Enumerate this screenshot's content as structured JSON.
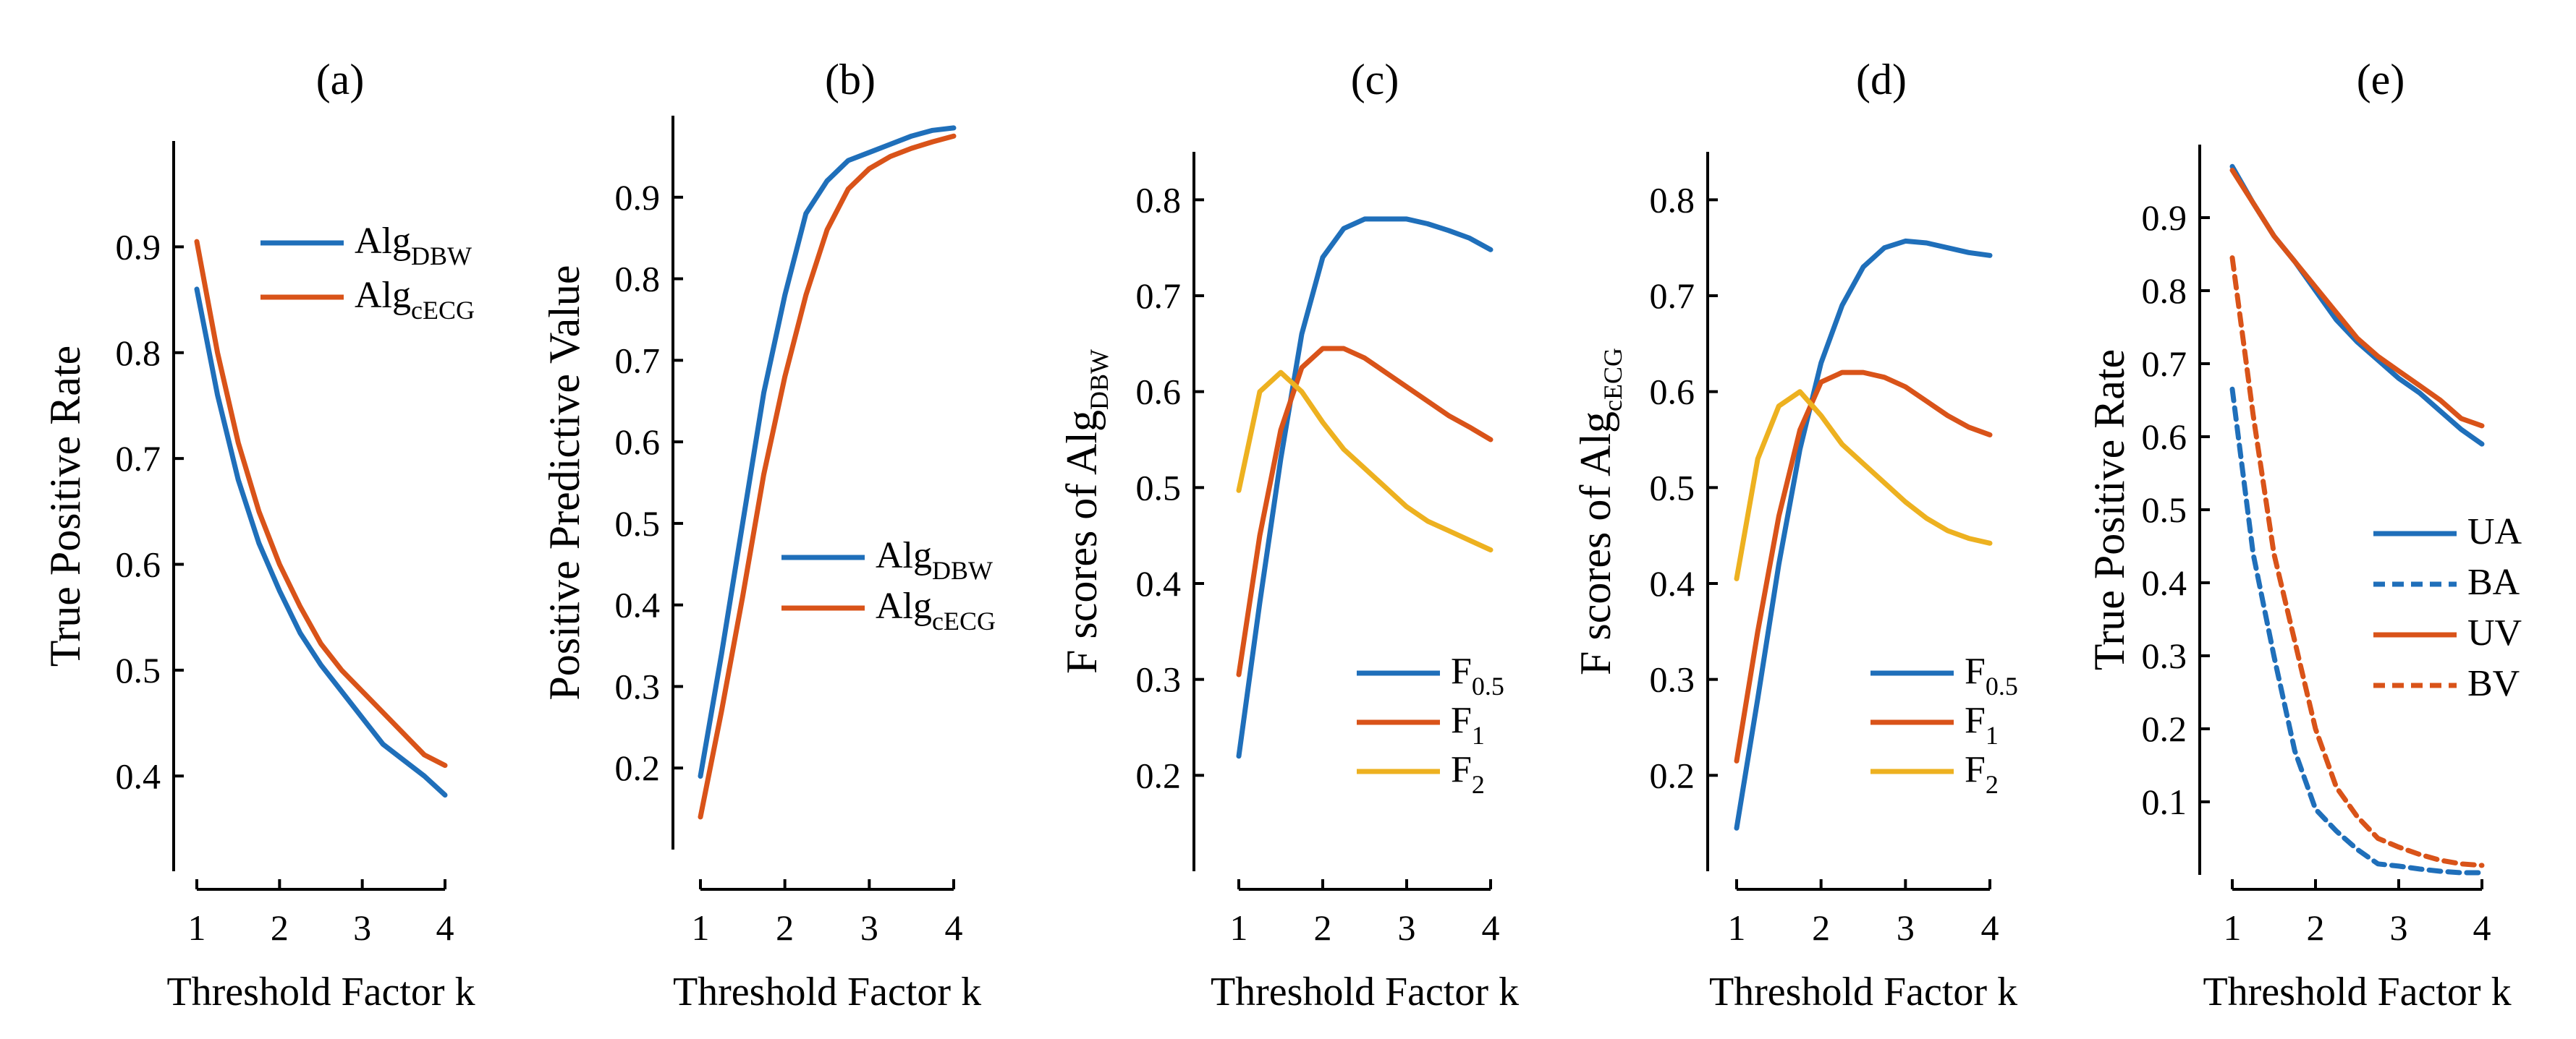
{
  "colors": {
    "blue": "#1f6fba",
    "orange": "#d95319",
    "yellow": "#edb120"
  },
  "chart_data": [
    {
      "type": "line",
      "title": "(a)",
      "xlabel": "Threshold Factor k",
      "ylabel": "True Positive Rate",
      "xlim": [
        1,
        4
      ],
      "ylim": [
        0.31,
        1.0
      ],
      "xticks": [
        1,
        2,
        3,
        4
      ],
      "xtick_labels": [
        "1",
        "2",
        "3",
        "4"
      ],
      "yticks": [
        0.4,
        0.5,
        0.6,
        0.7,
        0.8,
        0.9
      ],
      "ytick_labels": [
        "0.4",
        "0.5",
        "0.6",
        "0.7",
        "0.8",
        "0.9"
      ],
      "legend_position": "top-right",
      "x": [
        1.0,
        1.25,
        1.5,
        1.75,
        2.0,
        2.25,
        2.5,
        2.75,
        3.0,
        3.25,
        3.5,
        3.75,
        4.0
      ],
      "series": [
        {
          "name": "Alg",
          "sub": "DBW",
          "color": "blue",
          "dash": "solid",
          "values": [
            0.86,
            0.76,
            0.68,
            0.62,
            0.575,
            0.535,
            0.505,
            0.48,
            0.455,
            0.43,
            0.415,
            0.4,
            0.382
          ]
        },
        {
          "name": "Alg",
          "sub": "cECG",
          "color": "orange",
          "dash": "solid",
          "values": [
            0.905,
            0.8,
            0.715,
            0.65,
            0.6,
            0.56,
            0.525,
            0.5,
            0.48,
            0.46,
            0.44,
            0.42,
            0.41
          ]
        }
      ]
    },
    {
      "type": "line",
      "title": "(b)",
      "xlabel": "Threshold Factor k",
      "ylabel": "Positive Predictive Value",
      "xlim": [
        1,
        4
      ],
      "ylim": [
        0.1,
        1.0
      ],
      "xticks": [
        1,
        2,
        3,
        4
      ],
      "xtick_labels": [
        "1",
        "2",
        "3",
        "4"
      ],
      "yticks": [
        0.2,
        0.3,
        0.4,
        0.5,
        0.6,
        0.7,
        0.8,
        0.9
      ],
      "ytick_labels": [
        "0.2",
        "0.3",
        "0.4",
        "0.5",
        "0.6",
        "0.7",
        "0.8",
        "0.9"
      ],
      "legend_position": "middle-right",
      "x": [
        1.0,
        1.25,
        1.5,
        1.75,
        2.0,
        2.25,
        2.5,
        2.75,
        3.0,
        3.25,
        3.5,
        3.75,
        4.0
      ],
      "series": [
        {
          "name": "Alg",
          "sub": "DBW",
          "color": "blue",
          "dash": "solid",
          "values": [
            0.19,
            0.34,
            0.5,
            0.66,
            0.78,
            0.88,
            0.92,
            0.945,
            0.955,
            0.965,
            0.975,
            0.982,
            0.985
          ]
        },
        {
          "name": "Alg",
          "sub": "cECG",
          "color": "orange",
          "dash": "solid",
          "values": [
            0.14,
            0.27,
            0.41,
            0.56,
            0.68,
            0.78,
            0.86,
            0.91,
            0.935,
            0.95,
            0.96,
            0.968,
            0.975
          ]
        }
      ]
    },
    {
      "type": "line",
      "title": "(c)",
      "xlabel": "Threshold Factor k",
      "ylabel": "F scores of Alg",
      "ylabel_sub": "DBW",
      "xlim": [
        1,
        4
      ],
      "ylim": [
        0.1,
        0.85
      ],
      "xticks": [
        1,
        2,
        3,
        4
      ],
      "xtick_labels": [
        "1",
        "2",
        "3",
        "4"
      ],
      "yticks": [
        0.2,
        0.3,
        0.4,
        0.5,
        0.6,
        0.7,
        0.8
      ],
      "ytick_labels": [
        "0.2",
        "0.3",
        "0.4",
        "0.5",
        "0.6",
        "0.7",
        "0.8"
      ],
      "legend_position": "bottom-right",
      "x": [
        1.0,
        1.25,
        1.5,
        1.75,
        2.0,
        2.25,
        2.5,
        2.75,
        3.0,
        3.25,
        3.5,
        3.75,
        4.0
      ],
      "series": [
        {
          "name": "F",
          "sub": "0.5",
          "color": "blue",
          "dash": "solid",
          "values": [
            0.22,
            0.38,
            0.53,
            0.66,
            0.74,
            0.77,
            0.78,
            0.78,
            0.78,
            0.775,
            0.768,
            0.76,
            0.748
          ]
        },
        {
          "name": "F",
          "sub": "1",
          "color": "orange",
          "dash": "solid",
          "values": [
            0.305,
            0.45,
            0.56,
            0.625,
            0.645,
            0.645,
            0.635,
            0.62,
            0.605,
            0.59,
            0.575,
            0.563,
            0.55
          ]
        },
        {
          "name": "F",
          "sub": "2",
          "color": "yellow",
          "dash": "solid",
          "values": [
            0.497,
            0.6,
            0.62,
            0.6,
            0.568,
            0.54,
            0.52,
            0.5,
            0.48,
            0.465,
            0.455,
            0.445,
            0.435
          ]
        }
      ]
    },
    {
      "type": "line",
      "title": "(d)",
      "xlabel": "Threshold Factor k",
      "ylabel": "F scores of Alg",
      "ylabel_sub": "cECG",
      "xlim": [
        1,
        4
      ],
      "ylim": [
        0.1,
        0.85
      ],
      "xticks": [
        1,
        2,
        3,
        4
      ],
      "xtick_labels": [
        "1",
        "2",
        "3",
        "4"
      ],
      "yticks": [
        0.2,
        0.3,
        0.4,
        0.5,
        0.6,
        0.7,
        0.8
      ],
      "ytick_labels": [
        "0.2",
        "0.3",
        "0.4",
        "0.5",
        "0.6",
        "0.7",
        "0.8"
      ],
      "legend_position": "bottom-right",
      "x": [
        1.0,
        1.25,
        1.5,
        1.75,
        2.0,
        2.25,
        2.5,
        2.75,
        3.0,
        3.25,
        3.5,
        3.75,
        4.0
      ],
      "series": [
        {
          "name": "F",
          "sub": "0.5",
          "color": "blue",
          "dash": "solid",
          "values": [
            0.145,
            0.28,
            0.42,
            0.54,
            0.63,
            0.69,
            0.73,
            0.75,
            0.757,
            0.755,
            0.75,
            0.745,
            0.742
          ]
        },
        {
          "name": "F",
          "sub": "1",
          "color": "orange",
          "dash": "solid",
          "values": [
            0.215,
            0.35,
            0.47,
            0.56,
            0.61,
            0.62,
            0.62,
            0.615,
            0.605,
            0.59,
            0.575,
            0.563,
            0.555
          ]
        },
        {
          "name": "F",
          "sub": "2",
          "color": "yellow",
          "dash": "solid",
          "values": [
            0.405,
            0.53,
            0.585,
            0.6,
            0.575,
            0.545,
            0.525,
            0.505,
            0.485,
            0.468,
            0.455,
            0.447,
            0.442
          ]
        }
      ]
    },
    {
      "type": "line",
      "title": "(e)",
      "xlabel": "Threshold Factor k",
      "ylabel": "True Positive Rate",
      "xlim": [
        1,
        4
      ],
      "ylim": [
        0.0,
        1.0
      ],
      "xticks": [
        1,
        2,
        3,
        4
      ],
      "xtick_labels": [
        "1",
        "2",
        "3",
        "4"
      ],
      "yticks": [
        0.1,
        0.2,
        0.3,
        0.4,
        0.5,
        0.6,
        0.7,
        0.8,
        0.9
      ],
      "ytick_labels": [
        "0.1",
        "0.2",
        "0.3",
        "0.4",
        "0.5",
        "0.6",
        "0.7",
        "0.8",
        "0.9"
      ],
      "legend_position": "middle-right",
      "x": [
        1.0,
        1.25,
        1.5,
        1.75,
        2.0,
        2.25,
        2.5,
        2.75,
        3.0,
        3.25,
        3.5,
        3.75,
        4.0
      ],
      "series": [
        {
          "name": "UA",
          "sub": "",
          "color": "blue",
          "dash": "solid",
          "values": [
            0.97,
            0.92,
            0.875,
            0.84,
            0.8,
            0.76,
            0.73,
            0.705,
            0.68,
            0.66,
            0.635,
            0.61,
            0.59
          ]
        },
        {
          "name": "BA",
          "sub": "",
          "color": "blue",
          "dash": "dashed",
          "values": [
            0.665,
            0.44,
            0.3,
            0.17,
            0.09,
            0.06,
            0.035,
            0.015,
            0.012,
            0.008,
            0.005,
            0.003,
            0.003
          ]
        },
        {
          "name": "UV",
          "sub": "",
          "color": "orange",
          "dash": "solid",
          "values": [
            0.965,
            0.92,
            0.875,
            0.84,
            0.805,
            0.77,
            0.735,
            0.71,
            0.69,
            0.67,
            0.65,
            0.625,
            0.615
          ]
        },
        {
          "name": "BV",
          "sub": "",
          "color": "orange",
          "dash": "dashed",
          "values": [
            0.845,
            0.63,
            0.44,
            0.32,
            0.2,
            0.12,
            0.08,
            0.05,
            0.038,
            0.028,
            0.02,
            0.015,
            0.013
          ]
        }
      ]
    }
  ]
}
